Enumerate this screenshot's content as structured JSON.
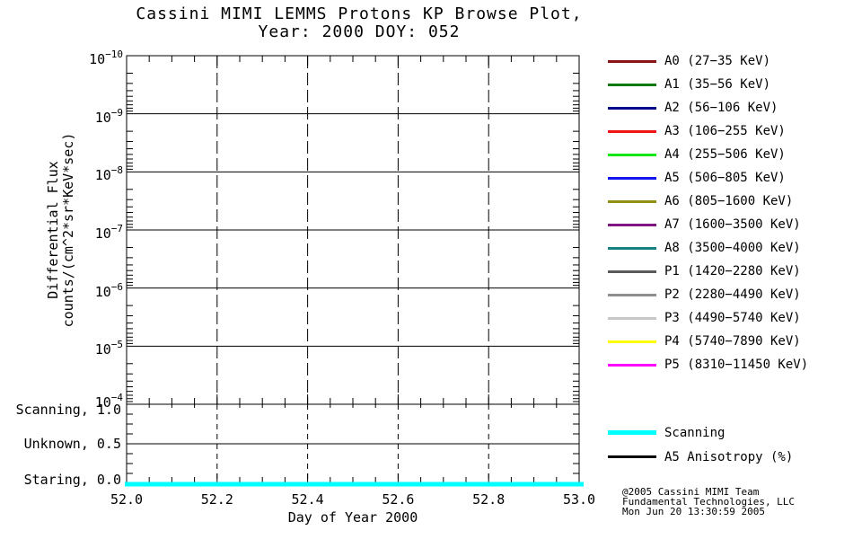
{
  "chart_data": {
    "type": "line",
    "title": "Cassini MIMI LEMMS Protons KP Browse Plot,",
    "subtitle": "Year: 2000 DOY: 052",
    "x_axis": {
      "label": "Day of Year 2000",
      "range": [
        52.0,
        53.0
      ],
      "ticks": [
        52.0,
        52.2,
        52.4,
        52.6,
        52.8,
        53.0
      ],
      "tick_labels": [
        "52.0",
        "52.2",
        "52.4",
        "52.6",
        "52.8",
        "53.0"
      ],
      "minor_tick_step": 0.05,
      "grid_style": "vertical dashed lines at major ticks"
    },
    "flux_panel": {
      "ylabel_line1": "Differential Flux",
      "ylabel_line2": "counts/(cm^2*sr*KeV*sec)",
      "scale": "log",
      "tick_exponents": [
        -10,
        -9,
        -8,
        -7,
        -6,
        -5,
        -4
      ],
      "orientation": "10^-10 at top, exponent increases downward to 10^-4",
      "grid_style": "horizontal solid lines at each decade",
      "series": []
    },
    "mode_panel": {
      "tick_labels": [
        {
          "label": "Scanning, 1.0",
          "value": 1.0
        },
        {
          "label": "Unknown, 0.5",
          "value": 0.5
        },
        {
          "label": "Staring, 0.0",
          "value": 0.0
        }
      ],
      "range": [
        0.0,
        1.0
      ],
      "series": [
        {
          "name": "Scanning",
          "color": "#00FFFF",
          "linewidth": 5,
          "x": [
            52.0,
            53.0
          ],
          "y": [
            0.0,
            0.0
          ]
        }
      ]
    },
    "legend": {
      "channels": [
        {
          "label": "A0 (27−35 KeV)",
          "color": "#8B1414"
        },
        {
          "label": "A1 (35−56 KeV)",
          "color": "#0E7A0E"
        },
        {
          "label": "A2 (56−106 KeV)",
          "color": "#00008B"
        },
        {
          "label": "A3 (106−255 KeV)",
          "color": "#F01414"
        },
        {
          "label": "A4 (255−506 KeV)",
          "color": "#14E814"
        },
        {
          "label": "A5 (506−805 KeV)",
          "color": "#1414F0"
        },
        {
          "label": "A6 (805−1600 KeV)",
          "color": "#8F8F14"
        },
        {
          "label": "A7 (1600−3500 KeV)",
          "color": "#821482"
        },
        {
          "label": "A8 (3500−4000 KeV)",
          "color": "#148282"
        },
        {
          "label": "P1 (1420−2280 KeV)",
          "color": "#5A5A5A"
        },
        {
          "label": "P2 (2280−4490 KeV)",
          "color": "#8F8F8F"
        },
        {
          "label": "P3 (4490−5740 KeV)",
          "color": "#C8C8C8"
        },
        {
          "label": "P4 (5740−7890 KeV)",
          "color": "#FFFF00"
        },
        {
          "label": "P5 (8310−11450 KeV)",
          "color": "#FF00FF"
        }
      ],
      "extra": [
        {
          "label": "Scanning",
          "color": "#00FFFF",
          "thick": true
        },
        {
          "label": "A5 Anisotropy (%)",
          "color": "#000000",
          "thick": false
        }
      ]
    },
    "credit": [
      "@2005 Cassini MIMI Team",
      "Fundamental Technologies, LLC",
      "Mon Jun 20 13:30:59 2005"
    ],
    "colors": {
      "background": "#FFFFFF",
      "axes": "#000000",
      "scanning_line": "#00FFFF"
    }
  }
}
